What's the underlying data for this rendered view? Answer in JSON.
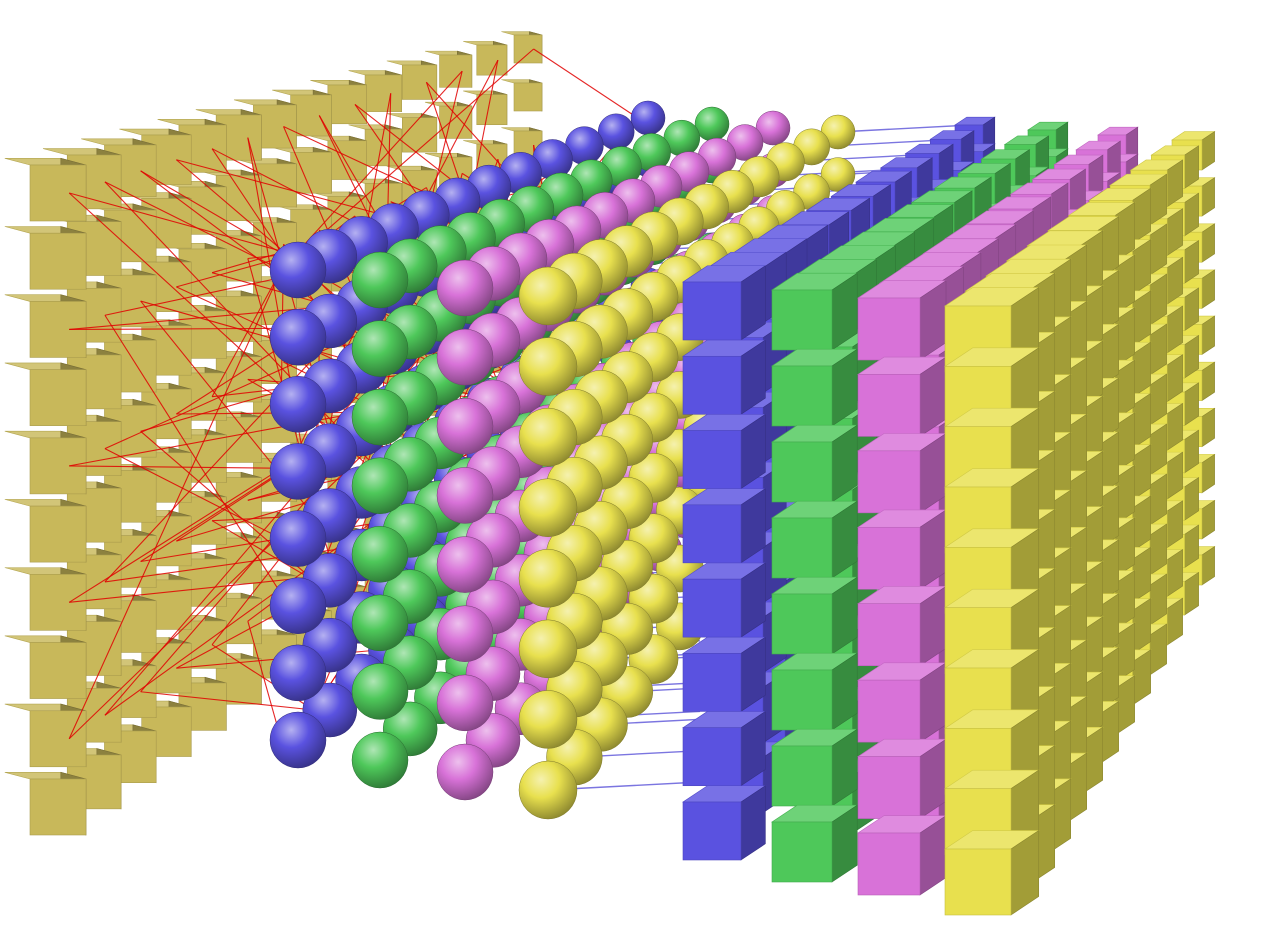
{
  "diagram": {
    "input_layer": {
      "shape": "cube",
      "rows": 10,
      "cols": 14,
      "color": "#c8b85a",
      "connection_color": "#e00000"
    },
    "sphere_layers": [
      {
        "color": "#5a52e0",
        "rows": 8,
        "depth": 12
      },
      {
        "color": "#4ec85a",
        "rows": 8,
        "depth": 12
      },
      {
        "color": "#d872d8",
        "rows": 8,
        "depth": 12
      },
      {
        "color": "#e8e04e",
        "rows": 8,
        "depth": 12
      }
    ],
    "sphere_link_color": "#5a52d8",
    "output_layers": [
      {
        "shape": "cube",
        "color": "#5a52e0",
        "rows": 8,
        "depth": 12
      },
      {
        "shape": "cube",
        "color": "#4ec85a",
        "rows": 8,
        "depth": 12
      },
      {
        "shape": "cube",
        "color": "#d872d8",
        "rows": 8,
        "depth": 12
      },
      {
        "shape": "cube",
        "color": "#e8e04e",
        "rows": 10,
        "depth": 12
      }
    ]
  }
}
